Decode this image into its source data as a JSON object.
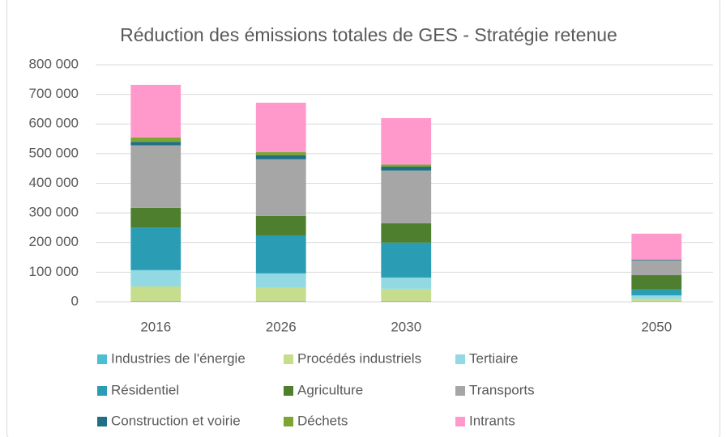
{
  "chart_data": {
    "type": "stacked-bar",
    "title": "Réduction des émissions totales de GES - Stratégie retenue",
    "categories": [
      "2016",
      "2026",
      "2030",
      null,
      "2050"
    ],
    "series": [
      {
        "name": "Industries de l'énergie",
        "color": "#4bbfd0",
        "values": [
          2000,
          2000,
          2000,
          null,
          1000
        ]
      },
      {
        "name": "Procédés industriels",
        "color": "#c6dd8e",
        "values": [
          50000,
          46000,
          42000,
          null,
          9000
        ]
      },
      {
        "name": "Tertiaire",
        "color": "#92d9e4",
        "values": [
          55000,
          48000,
          38000,
          null,
          12000
        ]
      },
      {
        "name": "Résidentiel",
        "color": "#2a9db5",
        "values": [
          144000,
          128000,
          118000,
          null,
          20000
        ]
      },
      {
        "name": "Agriculture",
        "color": "#4e7f2f",
        "values": [
          66000,
          66000,
          65000,
          null,
          48000
        ]
      },
      {
        "name": "Transports",
        "color": "#a6a6a6",
        "values": [
          211000,
          191000,
          178000,
          null,
          50000
        ]
      },
      {
        "name": "Construction et voirie",
        "color": "#1f6f86",
        "values": [
          12000,
          14000,
          13000,
          null,
          2000
        ]
      },
      {
        "name": "Déchets",
        "color": "#7ca531",
        "values": [
          15000,
          10000,
          7000,
          null,
          1000
        ]
      },
      {
        "name": "Intrants",
        "color": "#ff99cc",
        "values": [
          177000,
          167000,
          157000,
          null,
          87000
        ]
      }
    ],
    "ylim": [
      0,
      800000
    ],
    "yticks": [
      0,
      {
        "value": 100000,
        "label": "100 000"
      },
      {
        "value": 200000,
        "label": "200 000"
      },
      {
        "value": 300000,
        "label": "300 000"
      },
      {
        "value": 400000,
        "label": "400 000"
      },
      {
        "value": 500000,
        "label": "500 000"
      },
      {
        "value": 600000,
        "label": "600 000"
      },
      {
        "value": 700000,
        "label": "700 000"
      },
      {
        "value": 800000,
        "label": "800 000"
      }
    ],
    "grid": true,
    "legend": "bottom"
  }
}
